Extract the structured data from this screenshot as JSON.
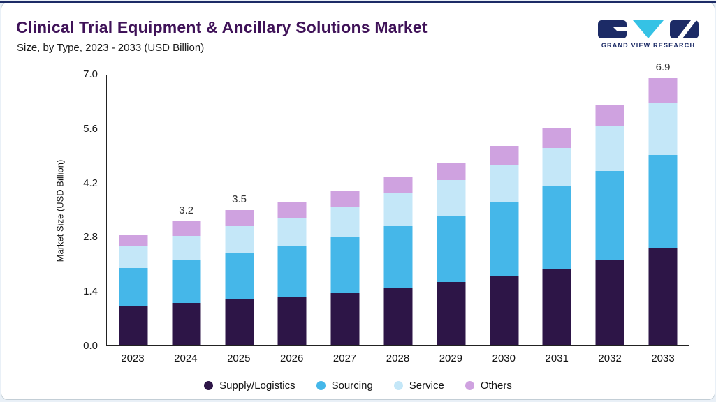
{
  "page": {
    "background": "#e9f0f7",
    "accent_line_color": "#1c2b66"
  },
  "header": {
    "title": "Clinical Trial Equipment & Ancillary Solutions Market",
    "subtitle": "Size, by Type, 2023 - 2033 (USD Billion)",
    "title_color": "#3f1258"
  },
  "logo": {
    "text": "GRAND VIEW RESEARCH",
    "navy": "#1c2b66",
    "cyan": "#35c2e5"
  },
  "chart_data": {
    "type": "bar",
    "stacked": true,
    "title": "Clinical Trial Equipment & Ancillary Solutions Market Size, by Type, 2023 - 2033 (USD Billion)",
    "categories": [
      "2023",
      "2024",
      "2025",
      "2026",
      "2027",
      "2028",
      "2029",
      "2030",
      "2031",
      "2032",
      "2033"
    ],
    "series": [
      {
        "name": "Supply/Logistics",
        "color": "#2d1547",
        "values": [
          1.0,
          1.1,
          1.18,
          1.26,
          1.35,
          1.48,
          1.63,
          1.8,
          1.98,
          2.2,
          2.5
        ]
      },
      {
        "name": "Sourcing",
        "color": "#45b7e9",
        "values": [
          1.0,
          1.1,
          1.22,
          1.32,
          1.45,
          1.6,
          1.7,
          1.9,
          2.12,
          2.3,
          2.42
        ]
      },
      {
        "name": "Service",
        "color": "#c4e7f8",
        "values": [
          0.55,
          0.62,
          0.68,
          0.7,
          0.77,
          0.85,
          0.93,
          0.95,
          1.0,
          1.15,
          1.33
        ]
      },
      {
        "name": "Others",
        "color": "#cfa2e0",
        "values": [
          0.3,
          0.38,
          0.42,
          0.42,
          0.43,
          0.42,
          0.44,
          0.5,
          0.5,
          0.55,
          0.65
        ]
      }
    ],
    "totals": [
      2.85,
      3.2,
      3.5,
      3.7,
      4.0,
      4.35,
      4.7,
      5.15,
      5.6,
      6.2,
      6.9
    ],
    "bar_labels": {
      "2024": "3.2",
      "2025": "3.5",
      "2033": "6.9"
    },
    "ylabel": "Market Size (USD Billion)",
    "yticks": [
      0.0,
      1.4,
      2.8,
      4.2,
      5.6,
      7.0
    ],
    "ytick_labels": [
      "0.0",
      "1.4",
      "2.8",
      "4.2",
      "5.6",
      "7.0"
    ],
    "ylim": [
      0,
      7.0
    ],
    "grid": false,
    "legend_position": "bottom"
  }
}
